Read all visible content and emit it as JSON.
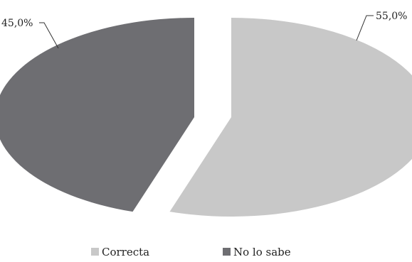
{
  "chart_data": {
    "type": "pie",
    "categories": [
      "Correcta",
      "No lo sabe"
    ],
    "values": [
      55.0,
      45.0
    ],
    "labels": [
      "55,0%",
      "45,0%"
    ],
    "colors": [
      "#c8c8c8",
      "#6e6e72"
    ],
    "legend_position": "bottom",
    "title": ""
  }
}
